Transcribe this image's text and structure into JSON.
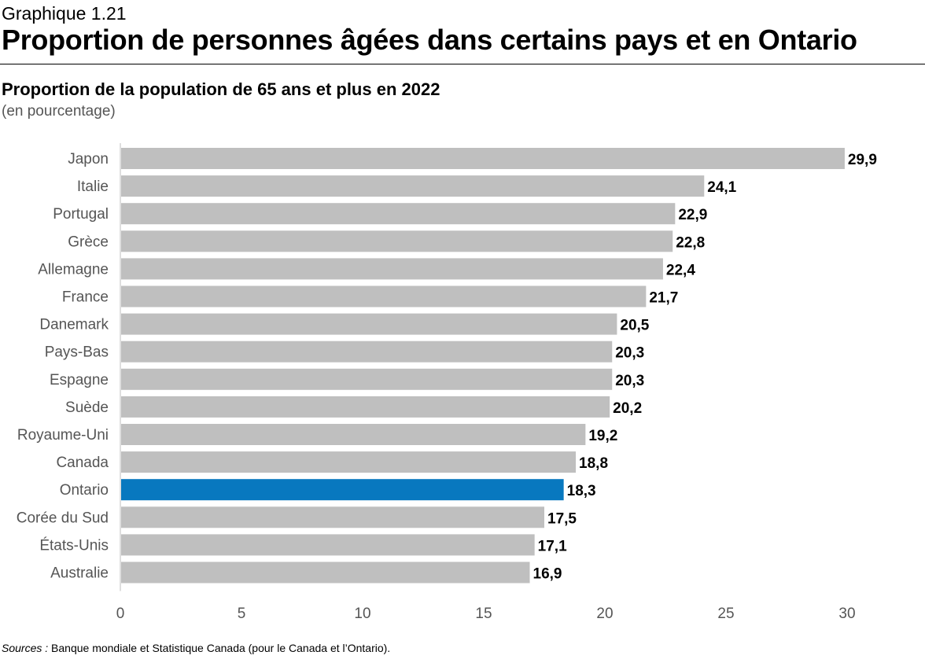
{
  "header": {
    "graph_number": "Graphique 1.21",
    "title": "Proportion de personnes âgées dans certains pays et en Ontario"
  },
  "chart_data": {
    "type": "bar",
    "orientation": "horizontal",
    "title": "Proportion de la population de 65 ans et plus en 2022",
    "subtitle": "(en pourcentage)",
    "xlabel": "",
    "ylabel": "",
    "xlim": [
      0,
      30
    ],
    "xticks": [
      0,
      5,
      10,
      15,
      20,
      25,
      30
    ],
    "xtick_labels": [
      "0",
      "5",
      "10",
      "15",
      "20",
      "25",
      "30"
    ],
    "categories": [
      "Japon",
      "Italie",
      "Portugal",
      "Grèce",
      "Allemagne",
      "France",
      "Danemark",
      "Pays-Bas",
      "Espagne",
      "Suède",
      "Royaume-Uni",
      "Canada",
      "Ontario",
      "Corée du Sud",
      "États-Unis",
      "Australie"
    ],
    "values": [
      29.9,
      24.1,
      22.9,
      22.8,
      22.4,
      21.7,
      20.5,
      20.3,
      20.3,
      20.2,
      19.2,
      18.8,
      18.3,
      17.5,
      17.1,
      16.9
    ],
    "value_labels": [
      "29,9",
      "24,1",
      "22,9",
      "22,8",
      "22,4",
      "21,7",
      "20,5",
      "20,3",
      "20,3",
      "20,2",
      "19,2",
      "18,8",
      "18,3",
      "17,5",
      "17,1",
      "16,9"
    ],
    "highlight": "Ontario",
    "colors": {
      "default": "#bfbfbf",
      "highlight": "#0878bf",
      "axis": "#bfbfbf",
      "category_text": "#555555",
      "tick_text": "#555555",
      "value_text": "#000000"
    },
    "grid": false
  },
  "footer": {
    "source_label": "Sources :",
    "source_text": " Banque mondiale et Statistique Canada (pour le Canada et l’Ontario)."
  }
}
